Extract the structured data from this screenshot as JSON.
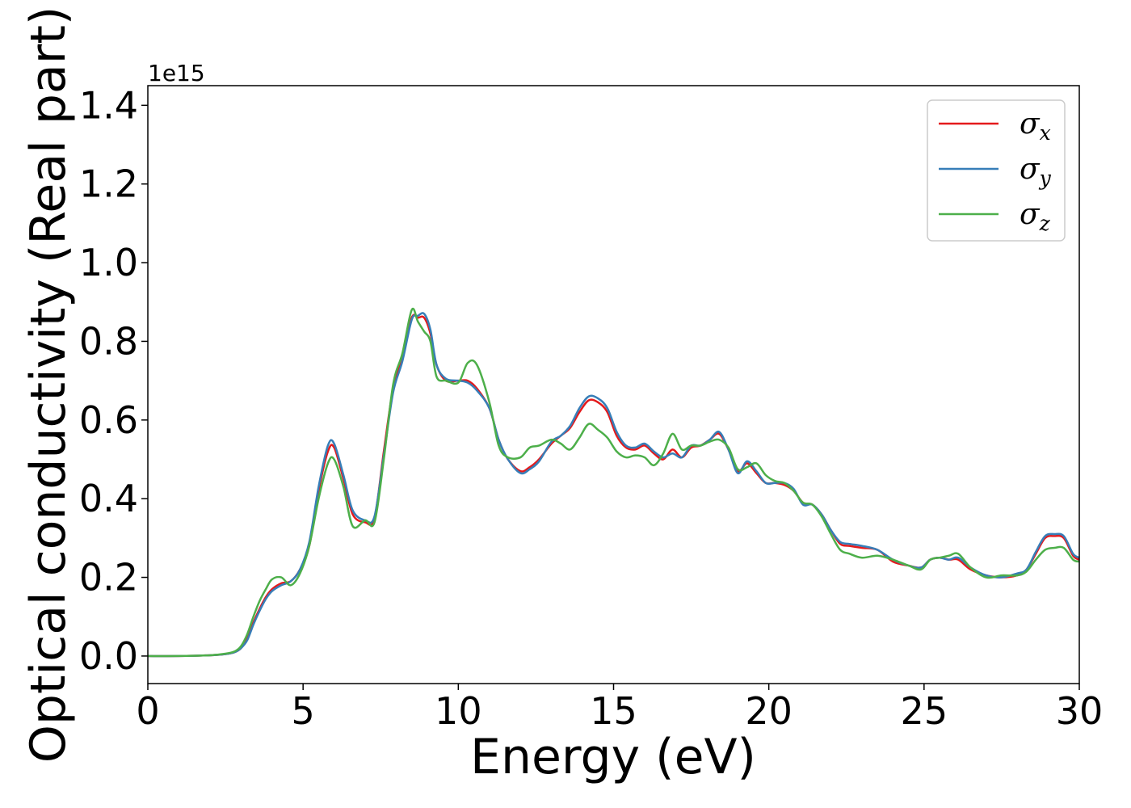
{
  "chart_data": {
    "type": "line",
    "title": "",
    "xlabel": "Energy (eV)",
    "ylabel": "Optical conductivity (Real part)",
    "y_offset_label": "1e15",
    "xlim": [
      0,
      30
    ],
    "ylim": [
      -0.07,
      1.45
    ],
    "x_ticks": [
      0,
      5,
      10,
      15,
      20,
      25,
      30
    ],
    "x_tick_labels": [
      "0",
      "5",
      "10",
      "15",
      "20",
      "25",
      "30"
    ],
    "y_ticks": [
      0.0,
      0.2,
      0.4,
      0.6,
      0.8,
      1.0,
      1.2,
      1.4
    ],
    "y_tick_labels": [
      "0.0",
      "0.2",
      "0.4",
      "0.6",
      "0.8",
      "1.0",
      "1.2",
      "1.4"
    ],
    "grid": false,
    "legend_position": "top-right",
    "series": [
      {
        "name": "σx",
        "symbol": "σ",
        "subscript": "x",
        "color": "#e41a1c",
        "x": [
          0,
          1,
          2,
          2.5,
          2.8,
          3.0,
          3.2,
          3.4,
          3.6,
          3.8,
          4.0,
          4.3,
          4.6,
          4.9,
          5.2,
          5.5,
          5.8,
          6.0,
          6.3,
          6.6,
          7.0,
          7.3,
          7.6,
          7.9,
          8.2,
          8.5,
          8.7,
          8.9,
          9.1,
          9.3,
          9.6,
          10.0,
          10.3,
          10.6,
          11.0,
          11.3,
          11.6,
          12.0,
          12.3,
          12.6,
          13.0,
          13.3,
          13.6,
          13.9,
          14.2,
          14.5,
          14.8,
          15.1,
          15.4,
          15.7,
          16.0,
          16.3,
          16.6,
          16.9,
          17.2,
          17.5,
          17.8,
          18.1,
          18.4,
          18.7,
          19.0,
          19.3,
          19.6,
          19.9,
          20.2,
          20.5,
          20.8,
          21.1,
          21.4,
          21.7,
          22.0,
          22.3,
          22.6,
          23.0,
          23.5,
          24.0,
          24.5,
          24.9,
          25.2,
          25.5,
          25.8,
          26.1,
          26.5,
          27.0,
          27.5,
          28.0,
          28.3,
          28.6,
          28.9,
          29.2,
          29.5,
          29.8,
          30.0
        ],
        "values": [
          0.0,
          0.0,
          0.002,
          0.005,
          0.01,
          0.02,
          0.045,
          0.085,
          0.12,
          0.15,
          0.17,
          0.185,
          0.19,
          0.22,
          0.28,
          0.42,
          0.52,
          0.53,
          0.45,
          0.36,
          0.34,
          0.35,
          0.52,
          0.68,
          0.76,
          0.86,
          0.86,
          0.86,
          0.82,
          0.74,
          0.7,
          0.7,
          0.7,
          0.68,
          0.63,
          0.55,
          0.5,
          0.47,
          0.48,
          0.5,
          0.54,
          0.56,
          0.58,
          0.62,
          0.65,
          0.645,
          0.62,
          0.56,
          0.53,
          0.525,
          0.535,
          0.515,
          0.5,
          0.525,
          0.505,
          0.53,
          0.535,
          0.55,
          0.565,
          0.525,
          0.47,
          0.49,
          0.465,
          0.44,
          0.44,
          0.435,
          0.42,
          0.39,
          0.385,
          0.36,
          0.32,
          0.285,
          0.28,
          0.275,
          0.27,
          0.24,
          0.23,
          0.225,
          0.245,
          0.25,
          0.245,
          0.245,
          0.22,
          0.205,
          0.2,
          0.205,
          0.22,
          0.26,
          0.3,
          0.305,
          0.3,
          0.255,
          0.245
        ]
      },
      {
        "name": "σy",
        "symbol": "σ",
        "subscript": "y",
        "color": "#377eb8",
        "x": [
          0,
          1,
          2,
          2.5,
          2.8,
          3.0,
          3.2,
          3.4,
          3.6,
          3.8,
          4.0,
          4.3,
          4.6,
          4.9,
          5.2,
          5.5,
          5.8,
          6.0,
          6.3,
          6.6,
          7.0,
          7.3,
          7.6,
          7.9,
          8.2,
          8.5,
          8.7,
          8.9,
          9.1,
          9.3,
          9.6,
          10.0,
          10.3,
          10.6,
          11.0,
          11.3,
          11.6,
          12.0,
          12.3,
          12.6,
          13.0,
          13.3,
          13.6,
          13.9,
          14.2,
          14.5,
          14.8,
          15.1,
          15.4,
          15.7,
          16.0,
          16.3,
          16.6,
          16.9,
          17.2,
          17.5,
          17.8,
          18.1,
          18.4,
          18.7,
          19.0,
          19.3,
          19.6,
          19.9,
          20.2,
          20.5,
          20.8,
          21.1,
          21.4,
          21.7,
          22.0,
          22.3,
          22.6,
          23.0,
          23.5,
          24.0,
          24.5,
          24.9,
          25.2,
          25.5,
          25.8,
          26.1,
          26.5,
          27.0,
          27.5,
          28.0,
          28.3,
          28.6,
          28.9,
          29.2,
          29.5,
          29.8,
          30.0
        ],
        "values": [
          0.0,
          0.0,
          0.002,
          0.005,
          0.01,
          0.02,
          0.04,
          0.08,
          0.115,
          0.145,
          0.165,
          0.18,
          0.19,
          0.22,
          0.29,
          0.43,
          0.535,
          0.54,
          0.46,
          0.37,
          0.345,
          0.355,
          0.51,
          0.67,
          0.75,
          0.855,
          0.865,
          0.87,
          0.83,
          0.74,
          0.705,
          0.7,
          0.695,
          0.675,
          0.63,
          0.55,
          0.5,
          0.465,
          0.475,
          0.495,
          0.545,
          0.56,
          0.585,
          0.63,
          0.66,
          0.655,
          0.63,
          0.57,
          0.535,
          0.53,
          0.54,
          0.52,
          0.505,
          0.515,
          0.505,
          0.535,
          0.535,
          0.55,
          0.57,
          0.525,
          0.465,
          0.495,
          0.47,
          0.44,
          0.44,
          0.44,
          0.425,
          0.385,
          0.385,
          0.36,
          0.32,
          0.29,
          0.285,
          0.28,
          0.27,
          0.245,
          0.23,
          0.225,
          0.245,
          0.25,
          0.245,
          0.25,
          0.225,
          0.205,
          0.2,
          0.21,
          0.22,
          0.265,
          0.305,
          0.31,
          0.305,
          0.26,
          0.25
        ]
      },
      {
        "name": "σz",
        "symbol": "σ",
        "subscript": "z",
        "color": "#4daf4a",
        "x": [
          0,
          1,
          2,
          2.5,
          2.8,
          3.0,
          3.2,
          3.4,
          3.6,
          3.8,
          4.0,
          4.3,
          4.6,
          4.9,
          5.2,
          5.5,
          5.8,
          6.0,
          6.3,
          6.6,
          7.0,
          7.3,
          7.6,
          7.9,
          8.2,
          8.5,
          8.7,
          8.9,
          9.1,
          9.3,
          9.6,
          10.0,
          10.3,
          10.6,
          11.0,
          11.3,
          11.6,
          12.0,
          12.3,
          12.6,
          13.0,
          13.3,
          13.6,
          13.9,
          14.2,
          14.5,
          14.8,
          15.1,
          15.4,
          15.7,
          16.0,
          16.3,
          16.6,
          16.9,
          17.2,
          17.5,
          17.8,
          18.1,
          18.4,
          18.7,
          19.0,
          19.3,
          19.6,
          19.9,
          20.2,
          20.5,
          20.8,
          21.1,
          21.4,
          21.7,
          22.0,
          22.3,
          22.6,
          23.0,
          23.5,
          24.0,
          24.5,
          24.9,
          25.2,
          25.5,
          25.8,
          26.1,
          26.5,
          27.0,
          27.5,
          28.0,
          28.3,
          28.6,
          28.9,
          29.2,
          29.5,
          29.8,
          30.0
        ],
        "values": [
          0.0,
          0.0,
          0.002,
          0.006,
          0.012,
          0.025,
          0.055,
          0.1,
          0.14,
          0.17,
          0.195,
          0.2,
          0.18,
          0.21,
          0.28,
          0.4,
          0.49,
          0.5,
          0.43,
          0.33,
          0.345,
          0.34,
          0.5,
          0.69,
          0.77,
          0.88,
          0.85,
          0.825,
          0.8,
          0.71,
          0.7,
          0.695,
          0.745,
          0.74,
          0.645,
          0.535,
          0.505,
          0.505,
          0.53,
          0.535,
          0.55,
          0.54,
          0.525,
          0.555,
          0.59,
          0.575,
          0.555,
          0.52,
          0.505,
          0.51,
          0.505,
          0.485,
          0.515,
          0.565,
          0.525,
          0.535,
          0.535,
          0.545,
          0.55,
          0.53,
          0.475,
          0.48,
          0.49,
          0.46,
          0.445,
          0.44,
          0.42,
          0.39,
          0.385,
          0.355,
          0.31,
          0.27,
          0.26,
          0.25,
          0.255,
          0.245,
          0.23,
          0.22,
          0.245,
          0.25,
          0.255,
          0.26,
          0.225,
          0.2,
          0.205,
          0.205,
          0.215,
          0.245,
          0.27,
          0.275,
          0.275,
          0.245,
          0.24
        ]
      }
    ]
  }
}
